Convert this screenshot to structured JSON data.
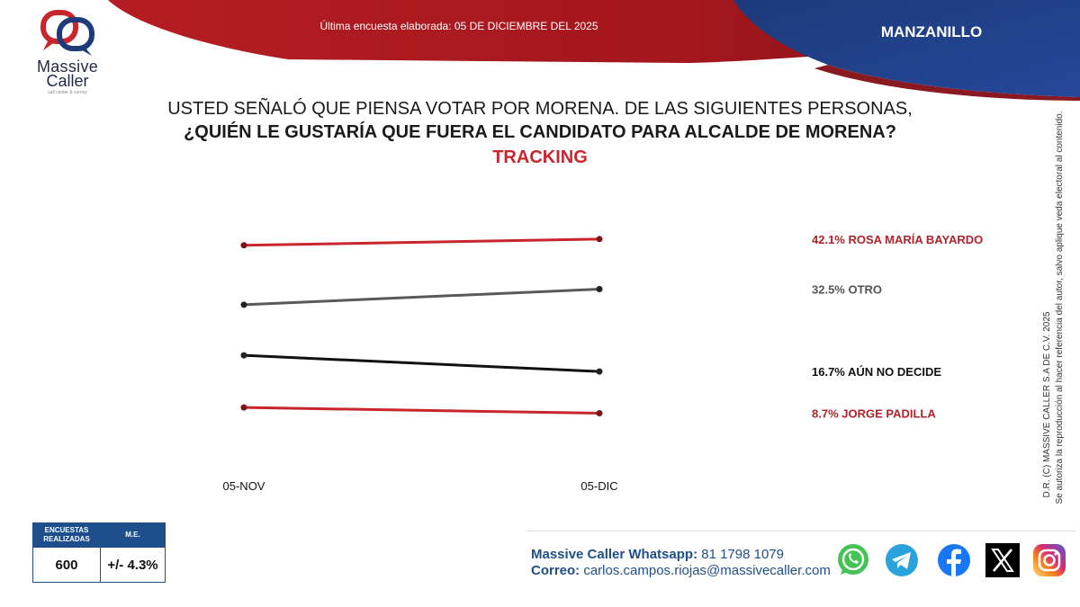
{
  "header": {
    "last_survey": "Última encuesta elaborada: 05 DE DICIEMBRE DEL 2025",
    "city": "MANZANILLO",
    "brand_line1": "Massive",
    "brand_line2": "Caller",
    "brand_tagline": "call center & survey"
  },
  "question": {
    "line1": "USTED SEÑALÓ QUE PIENSA VOTAR POR MORENA. DE LAS SIGUIENTES PERSONAS,",
    "line2": "¿QUIÉN LE GUSTARÍA QUE FUERA EL CANDIDATO PARA ALCALDE DE MORENA?",
    "subtitle": "TRACKING"
  },
  "chart_data": {
    "type": "line",
    "title": "TRACKING",
    "x": [
      "05-NOV",
      "05-DIC"
    ],
    "series": [
      {
        "name": "ROSA MARÍA BAYARDO",
        "values": [
          40.9,
          42.1
        ],
        "color": "#c9252c",
        "label": "42.1% ROSA MARÍA BAYARDO"
      },
      {
        "name": "OTRO",
        "values": [
          29.5,
          32.5
        ],
        "color": "#595959",
        "label": "32.5% OTRO"
      },
      {
        "name": "AÚN NO DECIDE",
        "values": [
          19.8,
          16.7
        ],
        "color": "#111111",
        "label": "16.7% AÚN NO DECIDE"
      },
      {
        "name": "JORGE PADILLA",
        "values": [
          9.8,
          8.7
        ],
        "color": "#c9252c",
        "label": "8.7% JORGE PADILLA"
      }
    ],
    "ylim": [
      0,
      50
    ],
    "grid": false
  },
  "copyright": {
    "line1": "D.R. (C) MASSIVE CALLER S.A DE C.V. 2025",
    "line2": "Se autoriza la reproducción al hacer referencia del autor, salvo aplique veda electoral al contenido."
  },
  "sample": {
    "header_surveys": "ENCUESTAS REALIZADAS",
    "header_me": "M.E.",
    "surveys": "600",
    "margin_error": "+/- 4.3%"
  },
  "contact": {
    "whatsapp_label": "Massive Caller Whatsapp:",
    "whatsapp_number": "81 1798 1079",
    "email_label": "Correo:",
    "email": "carlos.campos.riojas@massivecaller.com"
  },
  "social": {
    "icons": [
      "whatsapp-icon",
      "telegram-icon",
      "facebook-icon",
      "x-icon",
      "instagram-icon"
    ],
    "colors": {
      "whatsapp": "#45c356",
      "telegram": "#2aa3dc",
      "facebook": "#1877f2",
      "x": "#000000",
      "instagram": "#d62976"
    }
  },
  "colors": {
    "red": "#c9252c",
    "navy": "#1e3a78",
    "blue": "#1f4e8c"
  }
}
